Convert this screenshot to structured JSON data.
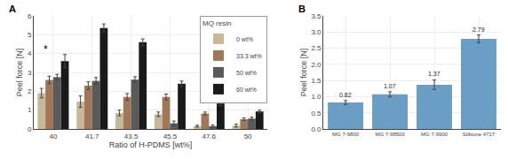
{
  "chart_data": [
    {
      "type": "bar",
      "title": "A",
      "xlabel": "Ratio of H-PDMS [wt%]",
      "ylabel": "Peel force [N]",
      "categories": [
        "40",
        "41.7",
        "43.5",
        "45.5",
        "47.6",
        "50"
      ],
      "series": [
        {
          "name": "0 wt%",
          "color": "#c8b89a",
          "values": [
            1.9,
            1.45,
            0.85,
            0.78,
            0.15,
            0.18
          ],
          "errors": [
            0.25,
            0.3,
            0.15,
            0.12,
            0.05,
            0.08
          ]
        },
        {
          "name": "33.3 wt%",
          "color": "#a07858",
          "values": [
            2.6,
            2.3,
            1.7,
            1.7,
            0.82,
            0.52
          ],
          "errors": [
            0.2,
            0.2,
            0.18,
            0.15,
            0.08,
            0.07
          ]
        },
        {
          "name": "50 wt%",
          "color": "#5a5a5a",
          "values": [
            2.75,
            2.55,
            2.62,
            0.3,
            0.15,
            0.55
          ],
          "errors": [
            0.15,
            0.18,
            0.15,
            0.12,
            0.06,
            0.08
          ]
        },
        {
          "name": "60 wt%",
          "color": "#1a1a1a",
          "values": [
            3.6,
            5.35,
            4.6,
            2.4,
            1.35,
            0.93
          ],
          "errors": [
            0.35,
            0.22,
            0.18,
            0.14,
            0.12,
            0.07
          ]
        }
      ],
      "ylim": [
        0,
        6
      ],
      "yticks": [
        0,
        1,
        2,
        3,
        4,
        5,
        6
      ],
      "grid": true,
      "legend": "upper right",
      "legend_title": "MQ resin",
      "annotations": [
        {
          "text": "*",
          "x": "40",
          "y": 3.8
        }
      ]
    },
    {
      "type": "bar",
      "title": "B",
      "ylabel": "Peel force [N]",
      "categories": [
        "MG 7-9800",
        "MG 7-98500",
        "MG 7-9900",
        "Silbione 4717"
      ],
      "values": [
        0.82,
        1.07,
        1.37,
        2.79
      ],
      "errors": [
        0.06,
        0.08,
        0.15,
        0.12
      ],
      "color": "#6a9ec5",
      "ylim": [
        0,
        3.5
      ],
      "yticks": [
        {
          "value": 0,
          "label": "0.0"
        },
        0.5,
        {
          "value": 1.0,
          "label": "1.0"
        },
        1.5,
        {
          "value": 2.0,
          "label": "2.0"
        },
        2.5,
        {
          "value": 3.0,
          "label": "3.0"
        },
        3.5
      ],
      "grid": true,
      "data_labels": true
    }
  ]
}
